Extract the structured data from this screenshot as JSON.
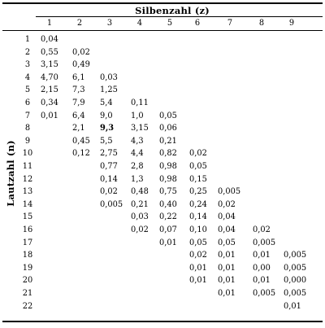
{
  "table": {
    "column_group_label": "Silbenzahl (z)",
    "row_group_label": "Lautzahl (n)",
    "columns": [
      "1",
      "2",
      "3",
      "4",
      "5",
      "6",
      "7",
      "8",
      "9"
    ],
    "rows": [
      {
        "n": "1",
        "cells": [
          "0,04",
          "",
          "",
          "",
          "",
          "",
          "",
          "",
          ""
        ]
      },
      {
        "n": "2",
        "cells": [
          "0,55",
          "0,02",
          "",
          "",
          "",
          "",
          "",
          "",
          ""
        ]
      },
      {
        "n": "3",
        "cells": [
          "3,15",
          "0,49",
          "",
          "",
          "",
          "",
          "",
          "",
          ""
        ]
      },
      {
        "n": "4",
        "cells": [
          "4,70",
          "6,1",
          "0,03",
          "",
          "",
          "",
          "",
          "",
          ""
        ]
      },
      {
        "n": "5",
        "cells": [
          "2,15",
          "7,3",
          "1,25",
          "",
          "",
          "",
          "",
          "",
          ""
        ]
      },
      {
        "n": "6",
        "cells": [
          "0,34",
          "7,9",
          "5,4",
          "0,11",
          "",
          "",
          "",
          "",
          ""
        ]
      },
      {
        "n": "7",
        "cells": [
          "0,01",
          "6,4",
          "9,0",
          "1,0",
          "0,05",
          "",
          "",
          "",
          ""
        ]
      },
      {
        "n": "8",
        "cells": [
          "",
          "2,1",
          "9,3",
          "3,15",
          "0,06",
          "",
          "",
          "",
          ""
        ]
      },
      {
        "n": "9",
        "cells": [
          "",
          "0,45",
          "5,5",
          "4,3",
          "0,21",
          "",
          "",
          "",
          ""
        ]
      },
      {
        "n": "10",
        "cells": [
          "",
          "0,12",
          "2,75",
          "4,4",
          "0,82",
          "0,02",
          "",
          "",
          ""
        ]
      },
      {
        "n": "11",
        "cells": [
          "",
          "",
          "0,77",
          "2,8",
          "0,98",
          "0,05",
          "",
          "",
          ""
        ]
      },
      {
        "n": "12",
        "cells": [
          "",
          "",
          "0,14",
          "1,3",
          "0,98",
          "0,15",
          "",
          "",
          ""
        ]
      },
      {
        "n": "13",
        "cells": [
          "",
          "",
          "0,02",
          "0,48",
          "0,75",
          "0,25",
          "0,005",
          "",
          ""
        ]
      },
      {
        "n": "14",
        "cells": [
          "",
          "",
          "0,005",
          "0,21",
          "0,40",
          "0,24",
          "0,02",
          "",
          ""
        ]
      },
      {
        "n": "15",
        "cells": [
          "",
          "",
          "",
          "0,03",
          "0,22",
          "0,14",
          "0,04",
          "",
          ""
        ]
      },
      {
        "n": "16",
        "cells": [
          "",
          "",
          "",
          "0,02",
          "0,07",
          "0,10",
          "0,04",
          "0,02",
          ""
        ]
      },
      {
        "n": "17",
        "cells": [
          "",
          "",
          "",
          "",
          "0,01",
          "0,05",
          "0,05",
          "0,005",
          ""
        ]
      },
      {
        "n": "18",
        "cells": [
          "",
          "",
          "",
          "",
          "",
          "0,02",
          "0,01",
          "0,01",
          "0,005"
        ]
      },
      {
        "n": "19",
        "cells": [
          "",
          "",
          "",
          "",
          "",
          "0,01",
          "0,01",
          "0,00",
          "0,005"
        ]
      },
      {
        "n": "20",
        "cells": [
          "",
          "",
          "",
          "",
          "",
          "0,01",
          "0,01",
          "0,01",
          "0,000"
        ]
      },
      {
        "n": "21",
        "cells": [
          "",
          "",
          "",
          "",
          "",
          "",
          "0,01",
          "0,005",
          "0,005"
        ]
      },
      {
        "n": "22",
        "cells": [
          "",
          "",
          "",
          "",
          "",
          "",
          "",
          "",
          "0,01"
        ]
      }
    ],
    "emphasized_cell": {
      "n": "8",
      "z": "3"
    }
  }
}
